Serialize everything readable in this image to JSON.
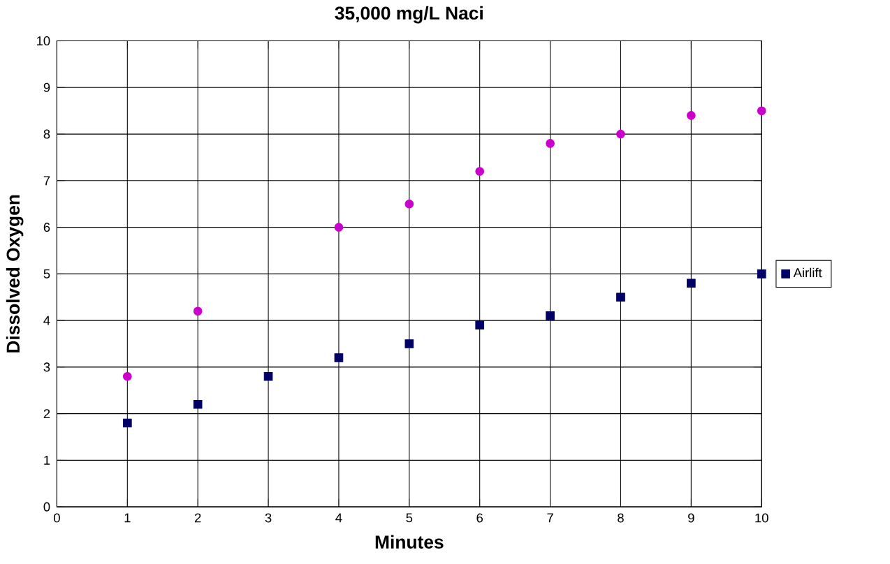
{
  "chart_data": {
    "type": "scatter",
    "title": "35,000 mg/L Naci",
    "xlabel": "Minutes",
    "ylabel": "Dissolved Oxygen",
    "x": [
      1,
      2,
      3,
      4,
      5,
      6,
      7,
      8,
      9,
      10
    ],
    "series": [
      {
        "color": "#cc00cc",
        "marker": "circle",
        "values": [
          2.8,
          4.2,
          null,
          6.0,
          6.5,
          7.2,
          7.8,
          8.0,
          8.4,
          8.5
        ]
      },
      {
        "name": "Airlift",
        "color": "#000066",
        "marker": "square",
        "values": [
          1.8,
          2.2,
          2.8,
          3.2,
          3.5,
          3.9,
          4.1,
          4.5,
          4.8,
          5.0
        ]
      }
    ],
    "xlim": [
      0,
      10
    ],
    "ylim": [
      0,
      10
    ],
    "xticks": [
      0,
      1,
      2,
      3,
      4,
      5,
      6,
      7,
      8,
      9,
      10
    ],
    "yticks": [
      0,
      1,
      2,
      3,
      4,
      5,
      6,
      7,
      8,
      9,
      10
    ],
    "grid": true,
    "legend": "right"
  }
}
